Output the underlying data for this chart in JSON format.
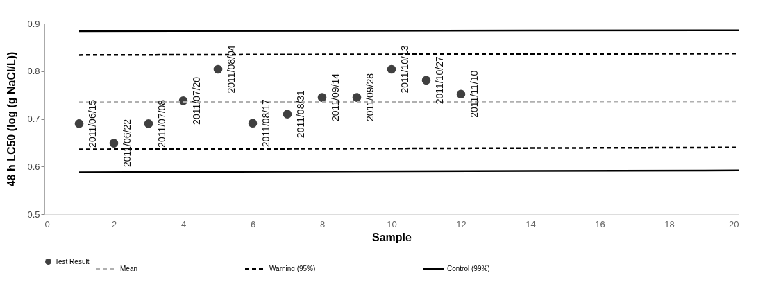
{
  "chart_data": {
    "type": "scatter",
    "xlabel": "Sample",
    "ylabel": "48 h LC50 (log (g NaCl/L))",
    "xlim": [
      0,
      20
    ],
    "xticks": [
      0,
      2,
      4,
      6,
      8,
      10,
      12,
      14,
      16,
      18,
      20
    ],
    "ylim": [
      0.5,
      0.9
    ],
    "yticks": [
      0.5,
      0.6,
      0.7,
      0.8,
      0.9
    ],
    "grid": false,
    "legend": "bottom",
    "series": [
      {
        "name": "Test Result",
        "marker": "circle",
        "color": "#404040",
        "x": [
          1,
          2,
          3,
          4,
          5,
          6,
          7,
          8,
          9,
          10,
          11,
          12
        ],
        "values": [
          0.69,
          0.649,
          0.69,
          0.738,
          0.804,
          0.691,
          0.71,
          0.745,
          0.745,
          0.804,
          0.781,
          0.752
        ]
      },
      {
        "name": "Mean",
        "type": "line",
        "line_style": "dashed",
        "color": "#b0b0b0",
        "x": [
          1,
          20
        ],
        "values": [
          0.735,
          0.737
        ]
      },
      {
        "name": "Warning (95%)",
        "type": "line",
        "line_style": "dashed",
        "color": "#000000",
        "x": [
          1,
          20
        ],
        "values": [
          0.834,
          0.837
        ]
      },
      {
        "type": "line",
        "line_style": "dashed",
        "color": "#000000",
        "x": [
          1,
          20
        ],
        "values": [
          0.636,
          0.64
        ]
      },
      {
        "name": "Control (99%)",
        "type": "line",
        "line_style": "solid",
        "color": "#000000",
        "x": [
          1,
          20
        ],
        "values": [
          0.884,
          0.886
        ]
      },
      {
        "type": "line",
        "line_style": "solid",
        "color": "#000000",
        "x": [
          1,
          20
        ],
        "values": [
          0.588,
          0.592
        ]
      }
    ],
    "annotations": [
      {
        "text": "2011/06/15",
        "x": 1,
        "y": 0.69
      },
      {
        "text": "2011/06/22",
        "x": 2,
        "y": 0.649
      },
      {
        "text": "2011/07/08",
        "x": 3,
        "y": 0.69
      },
      {
        "text": "2011/07/20",
        "x": 4,
        "y": 0.738
      },
      {
        "text": "2011/08/04",
        "x": 5,
        "y": 0.804
      },
      {
        "text": "2011/08/17",
        "x": 6,
        "y": 0.691
      },
      {
        "text": "2011/08/31",
        "x": 7,
        "y": 0.71
      },
      {
        "text": "2011/09/14",
        "x": 8,
        "y": 0.745
      },
      {
        "text": "2011/09/28",
        "x": 9,
        "y": 0.745
      },
      {
        "text": "2011/10/13",
        "x": 10,
        "y": 0.804
      },
      {
        "text": "2011/10/27",
        "x": 11,
        "y": 0.781
      },
      {
        "text": "2011/11/10",
        "x": 12,
        "y": 0.752
      }
    ]
  }
}
